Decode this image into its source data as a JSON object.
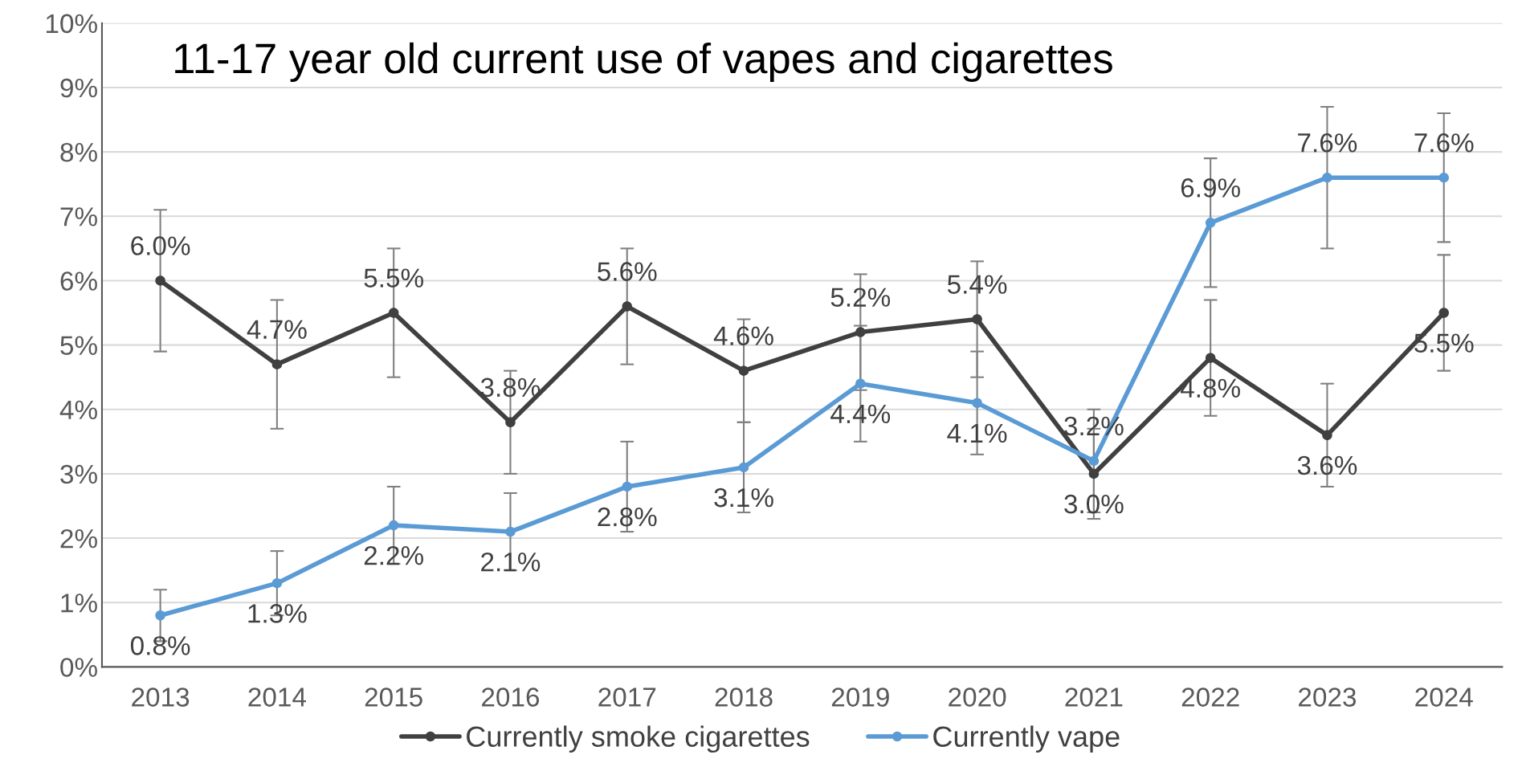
{
  "chart_data": {
    "type": "line",
    "title": "11-17 year old current use of vapes and cigarettes",
    "categories": [
      "2013",
      "2014",
      "2015",
      "2016",
      "2017",
      "2018",
      "2019",
      "2020",
      "2021",
      "2022",
      "2023",
      "2024"
    ],
    "series": [
      {
        "name": "Currently smoke cigarettes",
        "color": "#404040",
        "values": [
          6.0,
          4.7,
          5.5,
          3.8,
          5.6,
          4.6,
          5.2,
          5.4,
          3.0,
          4.8,
          3.6,
          5.5
        ],
        "errors": [
          1.1,
          1.0,
          1.0,
          0.8,
          0.9,
          0.8,
          0.9,
          0.9,
          0.7,
          0.9,
          0.8,
          0.9
        ],
        "value_labels": [
          "6.0%",
          "4.7%",
          "5.5%",
          "3.8%",
          "5.6%",
          "4.6%",
          "5.2%",
          "5.4%",
          "3.0%",
          "4.8%",
          "3.6%",
          "5.5%"
        ]
      },
      {
        "name": "Currently vape",
        "color": "#5b9bd5",
        "values": [
          0.8,
          1.3,
          2.2,
          2.1,
          2.8,
          3.1,
          4.4,
          4.1,
          3.2,
          6.9,
          7.6,
          7.6
        ],
        "errors": [
          0.4,
          0.5,
          0.6,
          0.6,
          0.7,
          0.7,
          0.9,
          0.8,
          0.8,
          1.0,
          1.1,
          1.0
        ],
        "value_labels": [
          "0.8%",
          "1.3%",
          "2.2%",
          "2.1%",
          "2.8%",
          "3.1%",
          "4.4%",
          "4.1%",
          "3.2%",
          "6.9%",
          "7.6%",
          "7.6%"
        ]
      }
    ],
    "ylim": [
      0,
      10
    ],
    "yticks": [
      {
        "value": 0,
        "label": "0%"
      },
      {
        "value": 1,
        "label": "1%"
      },
      {
        "value": 2,
        "label": "2%"
      },
      {
        "value": 3,
        "label": "3%"
      },
      {
        "value": 4,
        "label": "4%"
      },
      {
        "value": 5,
        "label": "5%"
      },
      {
        "value": 6,
        "label": "6%"
      },
      {
        "value": 7,
        "label": "7%"
      },
      {
        "value": 8,
        "label": "8%"
      },
      {
        "value": 9,
        "label": "9%"
      },
      {
        "value": 10,
        "label": "10%"
      }
    ],
    "grid": "y",
    "legend": "bottom",
    "marker": "circle",
    "line_style": "solid"
  }
}
